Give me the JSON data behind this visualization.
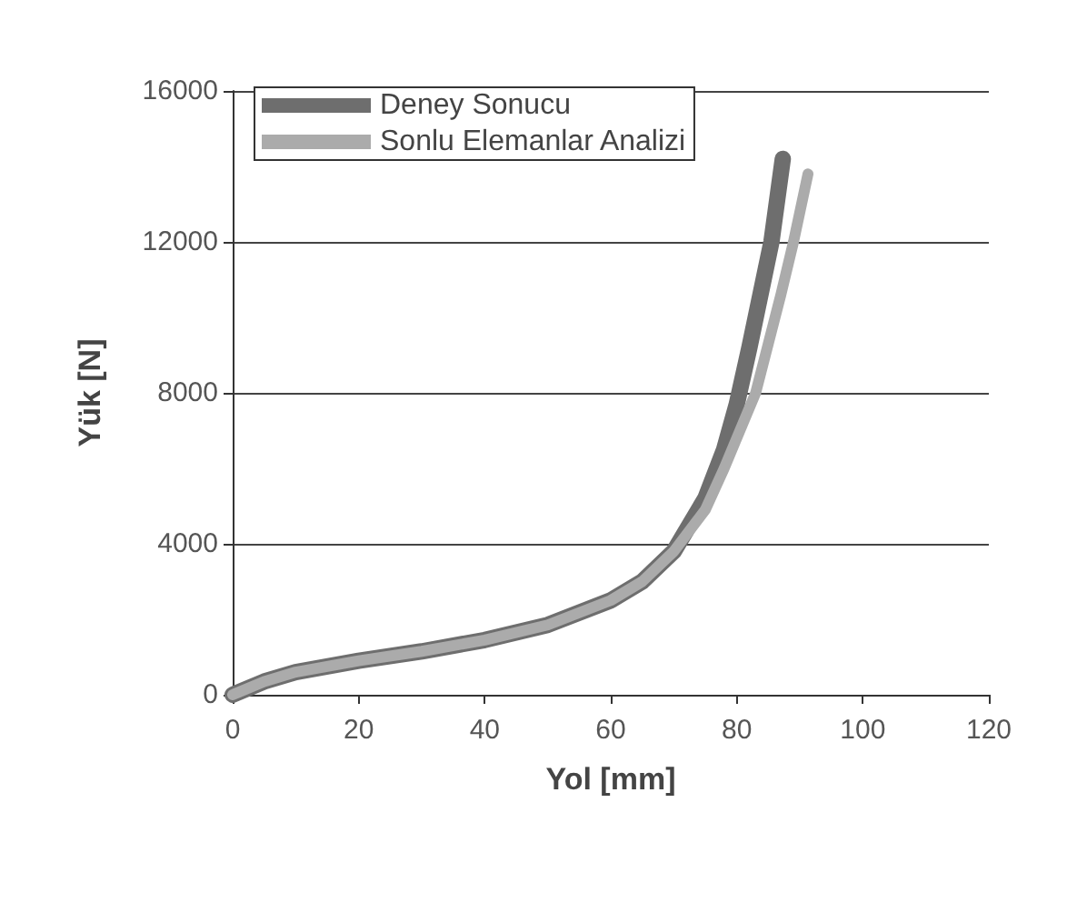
{
  "chart_data": {
    "type": "line",
    "xlabel": "Yol [mm]",
    "ylabel": "Yük [N]",
    "xlim": [
      0,
      120
    ],
    "xticks": [
      0,
      20,
      40,
      60,
      80,
      100,
      120
    ],
    "ylim": [
      0,
      16000
    ],
    "yticks": [
      0,
      4000,
      8000,
      12000,
      16000
    ],
    "grid": "y",
    "legend": "top left",
    "marker": "none",
    "line_style": "solid",
    "series": [
      {
        "name": "Deney Sonucu",
        "color": "#6e6e6e",
        "x": [
          0,
          5,
          10,
          20,
          30,
          40,
          50,
          60,
          65,
          70,
          75,
          78,
          80,
          82,
          84,
          85.5,
          87.3
        ],
        "values": [
          0,
          350,
          600,
          900,
          1150,
          1450,
          1850,
          2500,
          3000,
          3800,
          5200,
          6500,
          7700,
          9200,
          10800,
          12000,
          14200
        ]
      },
      {
        "name": "Sonlu Elemanlar Analizi",
        "color": "#ababab",
        "x": [
          0,
          5,
          10,
          20,
          30,
          40,
          50,
          60,
          65,
          70,
          75,
          78,
          80,
          83,
          85,
          87,
          89,
          91.3
        ],
        "values": [
          0,
          350,
          600,
          900,
          1150,
          1450,
          1850,
          2500,
          3000,
          3800,
          4900,
          6000,
          6800,
          8000,
          9300,
          10600,
          12000,
          13800
        ]
      }
    ]
  }
}
